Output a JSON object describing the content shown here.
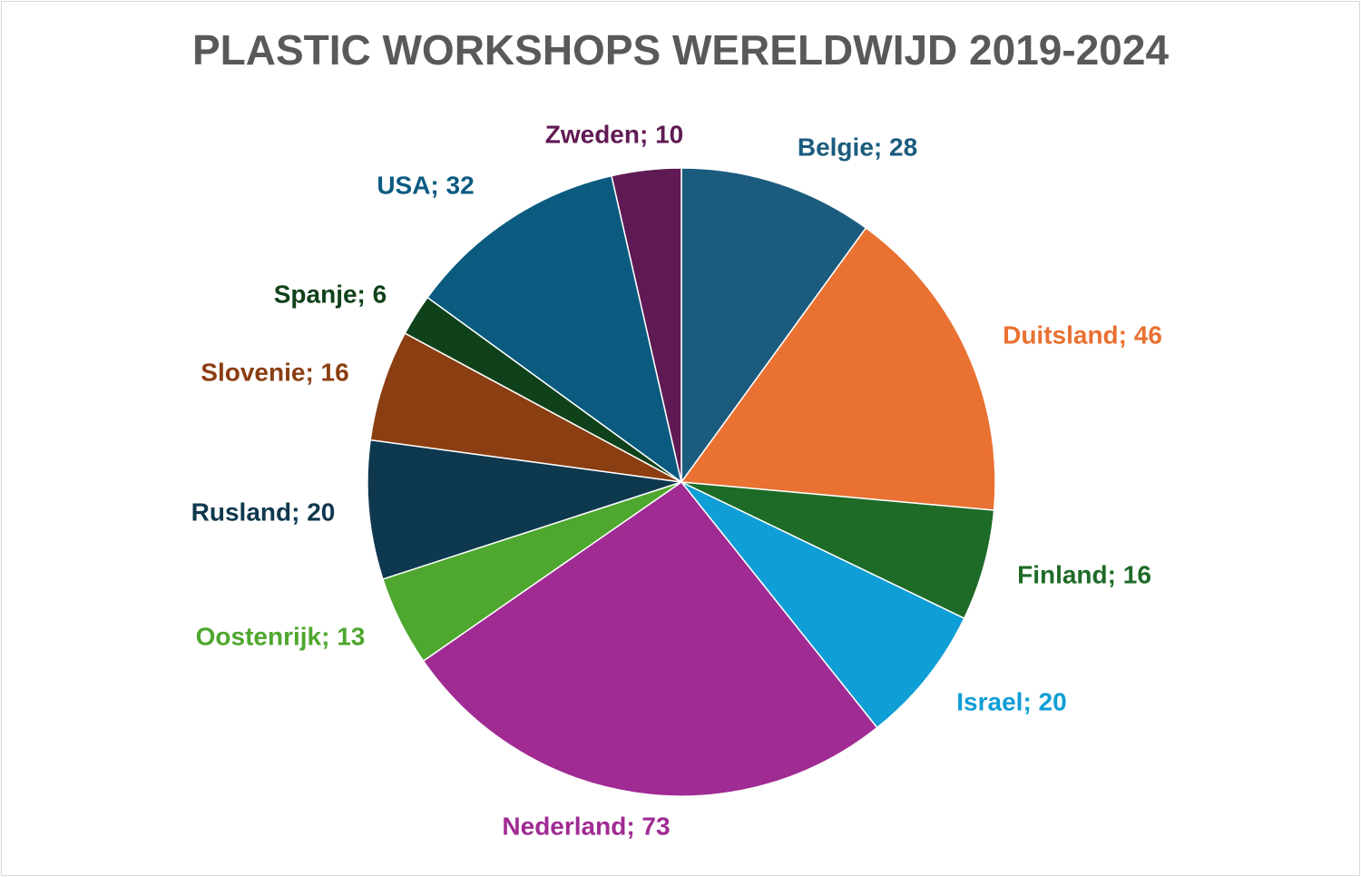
{
  "chart_data": {
    "type": "pie",
    "title": "PLASTIC WORKSHOPS WERELDWIJD 2019-2024",
    "categories": [
      "Belgie",
      "Duitsland",
      "Finland",
      "Israel",
      "Nederland",
      "Oostenrijk",
      "Rusland",
      "Slovenie",
      "Spanje",
      "USA",
      "Zweden"
    ],
    "values": [
      28,
      46,
      16,
      20,
      73,
      13,
      20,
      16,
      6,
      32,
      10
    ],
    "labels": [
      "Belgie; 28",
      "Duitsland; 46",
      "Finland; 16",
      "Israel; 20",
      "Nederland; 73",
      "Oostenrijk; 13",
      "Rusland; 20",
      "Slovenie; 16",
      "Spanje; 6",
      "USA; 32",
      "Zweden; 10"
    ],
    "colors": [
      "#1b5b7e",
      "#e97132",
      "#1e6b28",
      "#0f9ed5",
      "#a02b93",
      "#4ea72e",
      "#0e384e",
      "#8b3e12",
      "#0f411a",
      "#0b5b80",
      "#601a53"
    ],
    "label_colors": [
      "#1b5b7e",
      "#e97132",
      "#1e6b28",
      "#0f9ed5",
      "#a02b93",
      "#4ea72e",
      "#0e384e",
      "#8b3e12",
      "#0f411a",
      "#0b5b80",
      "#601a53"
    ],
    "start_angle": "12 o'clock",
    "direction": "clockwise",
    "legend": "none"
  }
}
